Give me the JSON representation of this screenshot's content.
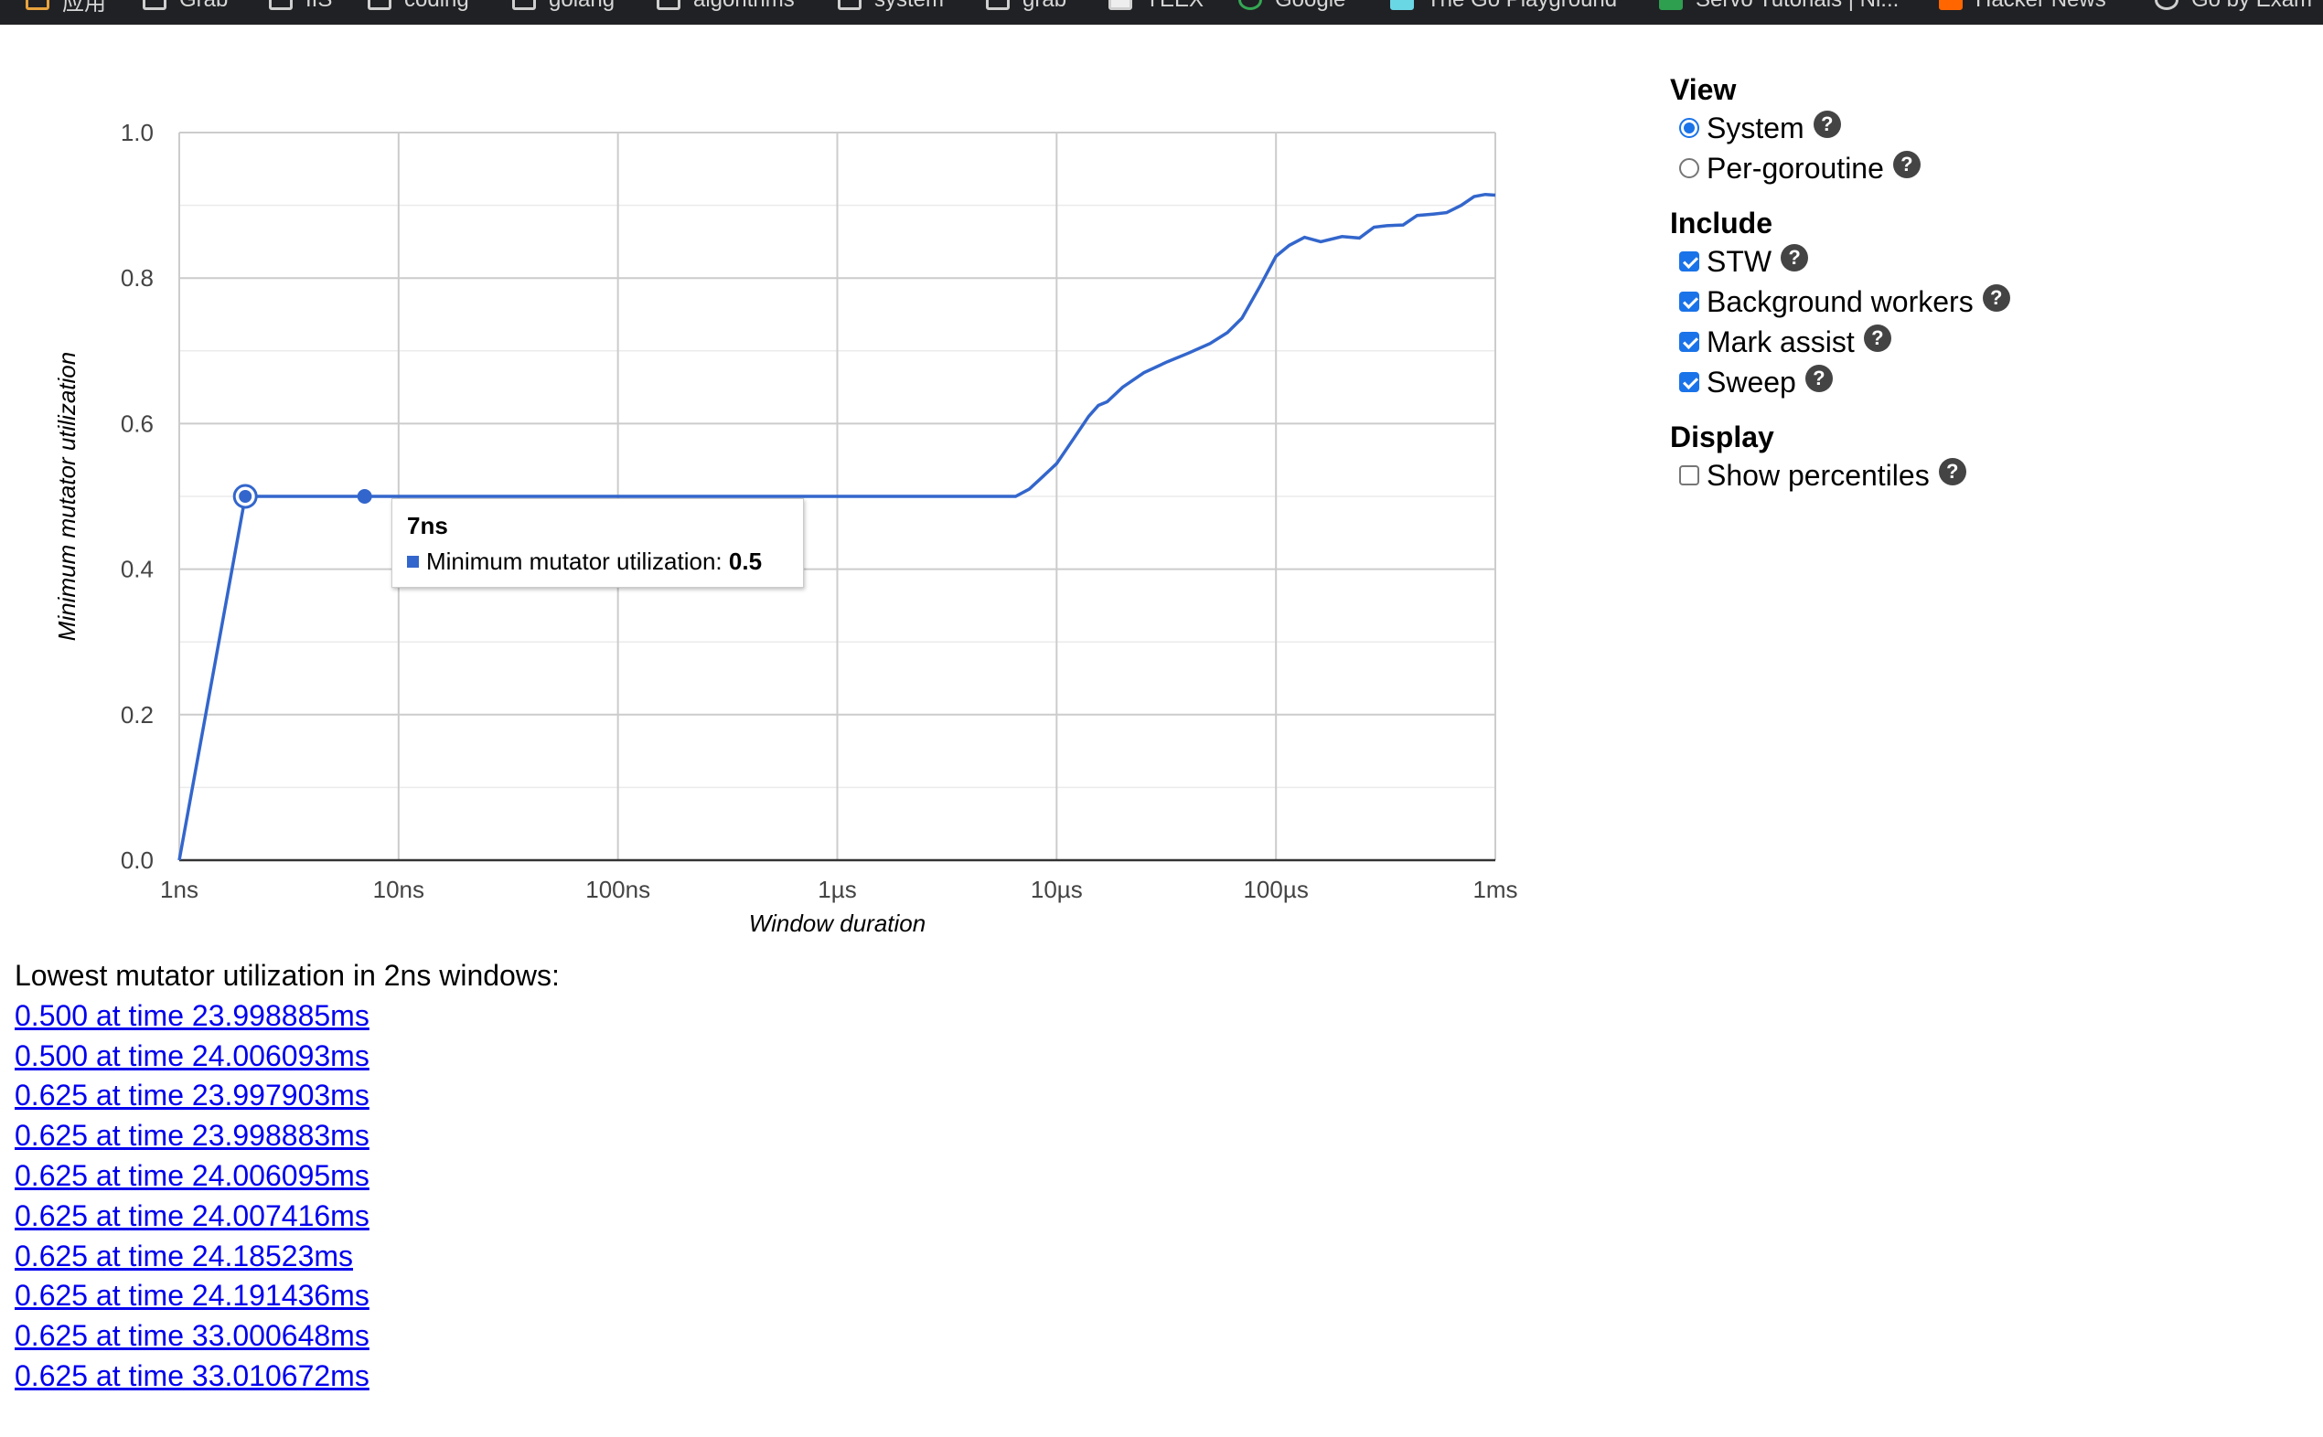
{
  "bookmarks": [
    {
      "label": "应用",
      "icon": "apps-grid-icon"
    },
    {
      "label": "Grab",
      "icon": "folder-icon"
    },
    {
      "label": "IIS",
      "icon": "folder-icon"
    },
    {
      "label": "coding",
      "icon": "folder-icon"
    },
    {
      "label": "golang",
      "icon": "folder-icon"
    },
    {
      "label": "algorithms",
      "icon": "folder-icon"
    },
    {
      "label": "system",
      "icon": "folder-icon"
    },
    {
      "label": "grab",
      "icon": "folder-icon"
    },
    {
      "label": "YEEX",
      "icon": "bookmark-icon"
    },
    {
      "label": "Google",
      "icon": "google-icon"
    },
    {
      "label": "The Go Playground",
      "icon": "gopher-icon"
    },
    {
      "label": "Servo Tutorials | Ni...",
      "icon": "shield-icon"
    },
    {
      "label": "Hacker News",
      "icon": "hn-icon"
    },
    {
      "label": "Go by Exam",
      "icon": "github-icon"
    }
  ],
  "chart_data": {
    "type": "line",
    "xlabel": "Window duration",
    "ylabel": "Minimum mutator utilization",
    "x_scale": "log",
    "x_ticks": [
      "1ns",
      "10ns",
      "100ns",
      "1µs",
      "10µs",
      "100µs",
      "1ms"
    ],
    "y_ticks": [
      "0.0",
      "0.2",
      "0.4",
      "0.6",
      "0.8",
      "1.0"
    ],
    "xlim_ns": [
      1,
      1000000
    ],
    "ylim": [
      0,
      1
    ],
    "grid": true,
    "color": "#3366cc",
    "series": [
      {
        "x_ns": [
          1,
          2,
          3,
          5,
          7,
          20,
          100,
          1000,
          5000,
          6500,
          7500,
          8500,
          10000,
          12000,
          14000,
          15500,
          17000,
          20000,
          25000,
          32000,
          40000,
          50000,
          60000,
          70000,
          85000,
          100000,
          115000,
          135000,
          160000,
          200000,
          240000,
          280000,
          320000,
          380000,
          440000,
          520000,
          600000,
          700000,
          800000,
          900000,
          1000000
        ],
        "values": [
          0.0,
          0.5,
          0.5,
          0.5,
          0.5,
          0.5,
          0.5,
          0.5,
          0.5,
          0.5,
          0.51,
          0.525,
          0.545,
          0.58,
          0.61,
          0.625,
          0.63,
          0.65,
          0.67,
          0.685,
          0.697,
          0.71,
          0.725,
          0.745,
          0.79,
          0.83,
          0.845,
          0.856,
          0.85,
          0.857,
          0.855,
          0.87,
          0.872,
          0.873,
          0.886,
          0.888,
          0.89,
          0.9,
          0.912,
          0.915,
          0.914
        ]
      }
    ],
    "markers": [
      {
        "x_ns": 2,
        "value": 0.5,
        "style": "ring"
      },
      {
        "x_ns": 7,
        "value": 0.5,
        "style": "dot"
      }
    ]
  },
  "tooltip": {
    "title": "7ns",
    "series_label": "Minimum mutator utilization:",
    "value": "0.5"
  },
  "options": {
    "view_heading": "View",
    "view_items": [
      {
        "label": "System",
        "checked": true
      },
      {
        "label": "Per-goroutine",
        "checked": false
      }
    ],
    "include_heading": "Include",
    "include_items": [
      {
        "label": "STW",
        "checked": true
      },
      {
        "label": "Background workers",
        "checked": true
      },
      {
        "label": "Mark assist",
        "checked": true
      },
      {
        "label": "Sweep",
        "checked": true
      }
    ],
    "display_heading": "Display",
    "display_items": [
      {
        "label": "Show percentiles",
        "checked": false
      }
    ],
    "help_glyph": "?"
  },
  "results": {
    "heading": "Lowest mutator utilization in 2ns windows:",
    "links": [
      "0.500 at time 23.998885ms",
      "0.500 at time 24.006093ms",
      "0.625 at time 23.997903ms",
      "0.625 at time 23.998883ms",
      "0.625 at time 24.006095ms",
      "0.625 at time 24.007416ms",
      "0.625 at time 24.18523ms",
      "0.625 at time 24.191436ms",
      "0.625 at time 33.000648ms",
      "0.625 at time 33.010672ms"
    ]
  }
}
